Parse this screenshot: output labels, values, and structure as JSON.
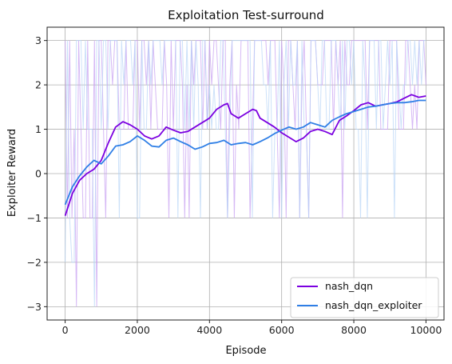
{
  "chart_data": {
    "type": "line",
    "title": "Exploitation Test-surround",
    "xlabel": "Episode",
    "ylabel": "Exploiter Reward",
    "xlim": [
      -500,
      10500
    ],
    "ylim": [
      -3.3,
      3.3
    ],
    "xticks": [
      0,
      2000,
      4000,
      6000,
      8000,
      10000
    ],
    "yticks": [
      -3,
      -2,
      -1,
      0,
      1,
      2,
      3
    ],
    "grid": true,
    "legend_position": "bottom-right",
    "raw_values": [
      -3,
      -2,
      -1,
      1,
      2,
      3
    ],
    "series": [
      {
        "name": "nash_dqn",
        "color": "#7b00e0",
        "raw_color": "#c8a2f2",
        "smoothed": {
          "x": [
            0,
            200,
            400,
            600,
            800,
            1000,
            1200,
            1400,
            1600,
            1800,
            2000,
            2200,
            2400,
            2600,
            2800,
            3000,
            3200,
            3400,
            3600,
            3800,
            4000,
            4200,
            4400,
            4500,
            4600,
            4800,
            5000,
            5200,
            5300,
            5400,
            5600,
            5800,
            6000,
            6200,
            6400,
            6600,
            6800,
            7000,
            7200,
            7400,
            7600,
            7800,
            8000,
            8200,
            8400,
            8600,
            8800,
            9000,
            9200,
            9400,
            9600,
            9800,
            10000
          ],
          "y": [
            -0.95,
            -0.45,
            -0.15,
            0.0,
            0.1,
            0.3,
            0.7,
            1.05,
            1.17,
            1.1,
            1.0,
            0.85,
            0.78,
            0.85,
            1.05,
            0.98,
            0.92,
            0.95,
            1.05,
            1.15,
            1.25,
            1.45,
            1.55,
            1.58,
            1.35,
            1.25,
            1.35,
            1.45,
            1.42,
            1.25,
            1.15,
            1.05,
            0.92,
            0.82,
            0.72,
            0.8,
            0.95,
            1.0,
            0.95,
            0.88,
            1.2,
            1.3,
            1.42,
            1.55,
            1.6,
            1.52,
            1.55,
            1.58,
            1.62,
            1.7,
            1.78,
            1.72,
            1.75
          ]
        }
      },
      {
        "name": "nash_dqn_exploiter",
        "color": "#2f7fe6",
        "raw_color": "#b6d4f7",
        "smoothed": {
          "x": [
            0,
            200,
            400,
            600,
            800,
            1000,
            1200,
            1400,
            1600,
            1800,
            2000,
            2200,
            2400,
            2600,
            2800,
            3000,
            3200,
            3400,
            3600,
            3800,
            4000,
            4200,
            4400,
            4600,
            4800,
            5000,
            5200,
            5400,
            5600,
            5800,
            6000,
            6200,
            6400,
            6600,
            6800,
            7000,
            7200,
            7400,
            7600,
            7800,
            8000,
            8200,
            8400,
            8600,
            8800,
            9000,
            9200,
            9400,
            9600,
            9800,
            10000
          ],
          "y": [
            -0.7,
            -0.3,
            -0.05,
            0.15,
            0.3,
            0.22,
            0.4,
            0.62,
            0.65,
            0.72,
            0.85,
            0.75,
            0.62,
            0.6,
            0.75,
            0.8,
            0.72,
            0.65,
            0.55,
            0.6,
            0.68,
            0.7,
            0.75,
            0.65,
            0.68,
            0.7,
            0.65,
            0.72,
            0.8,
            0.9,
            0.98,
            1.05,
            1.0,
            1.05,
            1.15,
            1.1,
            1.05,
            1.2,
            1.28,
            1.35,
            1.4,
            1.45,
            1.5,
            1.52,
            1.55,
            1.58,
            1.6,
            1.6,
            1.62,
            1.65,
            1.65
          ]
        }
      }
    ]
  }
}
